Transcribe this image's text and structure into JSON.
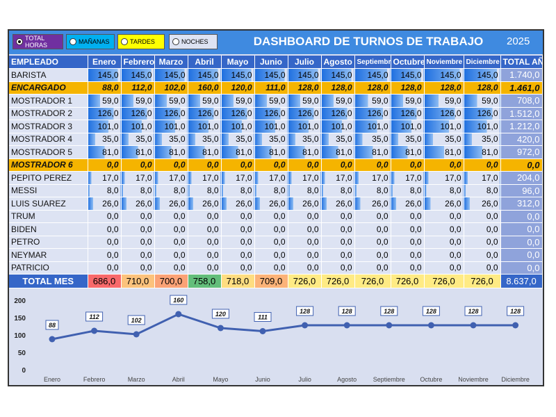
{
  "header": {
    "options": [
      {
        "label": "TOTAL HORAS",
        "selected": true,
        "color": "#7030a0"
      },
      {
        "label": "MAÑANAS",
        "selected": false,
        "color": "#00b0f0"
      },
      {
        "label": "TARDES",
        "selected": false,
        "color": "#ffff00"
      },
      {
        "label": "NOCHES",
        "selected": false,
        "color": "#dde3f3"
      }
    ],
    "title": "DASHBOARD DE TURNOS DE TRABAJO",
    "year": "2025"
  },
  "table": {
    "employee_header": "EMPLEADO",
    "months": [
      "Enero",
      "Febrero",
      "Marzo",
      "Abril",
      "Mayo",
      "Junio",
      "Julio",
      "Agosto",
      "Septiembre",
      "Octubre",
      "Noviembre",
      "Diciembre"
    ],
    "total_header": "TOTAL AÑO",
    "max_value": 160,
    "rows": [
      {
        "name": "BARISTA",
        "highlight": false,
        "values": [
          "145,0",
          "145,0",
          "145,0",
          "145,0",
          "145,0",
          "145,0",
          "145,0",
          "145,0",
          "145,0",
          "145,0",
          "145,0",
          "145,0"
        ],
        "nums": [
          145,
          145,
          145,
          145,
          145,
          145,
          145,
          145,
          145,
          145,
          145,
          145
        ],
        "total": "1.740,0"
      },
      {
        "name": "ENCARGADO",
        "highlight": true,
        "values": [
          "88,0",
          "112,0",
          "102,0",
          "160,0",
          "120,0",
          "111,0",
          "128,0",
          "128,0",
          "128,0",
          "128,0",
          "128,0",
          "128,0"
        ],
        "nums": [
          88,
          112,
          102,
          160,
          120,
          111,
          128,
          128,
          128,
          128,
          128,
          128
        ],
        "total": "1.461,0"
      },
      {
        "name": "MOSTRADOR 1",
        "highlight": false,
        "values": [
          "59,0",
          "59,0",
          "59,0",
          "59,0",
          "59,0",
          "59,0",
          "59,0",
          "59,0",
          "59,0",
          "59,0",
          "59,0",
          "59,0"
        ],
        "nums": [
          59,
          59,
          59,
          59,
          59,
          59,
          59,
          59,
          59,
          59,
          59,
          59
        ],
        "total": "708,0"
      },
      {
        "name": "MOSTRADOR 2",
        "highlight": false,
        "values": [
          "126,0",
          "126,0",
          "126,0",
          "126,0",
          "126,0",
          "126,0",
          "126,0",
          "126,0",
          "126,0",
          "126,0",
          "126,0",
          "126,0"
        ],
        "nums": [
          126,
          126,
          126,
          126,
          126,
          126,
          126,
          126,
          126,
          126,
          126,
          126
        ],
        "total": "1.512,0"
      },
      {
        "name": "MOSTRADOR 3",
        "highlight": false,
        "values": [
          "101,0",
          "101,0",
          "101,0",
          "101,0",
          "101,0",
          "101,0",
          "101,0",
          "101,0",
          "101,0",
          "101,0",
          "101,0",
          "101,0"
        ],
        "nums": [
          101,
          101,
          101,
          101,
          101,
          101,
          101,
          101,
          101,
          101,
          101,
          101
        ],
        "total": "1.212,0"
      },
      {
        "name": "MOSTRADOR 4",
        "highlight": false,
        "values": [
          "35,0",
          "35,0",
          "35,0",
          "35,0",
          "35,0",
          "35,0",
          "35,0",
          "35,0",
          "35,0",
          "35,0",
          "35,0",
          "35,0"
        ],
        "nums": [
          35,
          35,
          35,
          35,
          35,
          35,
          35,
          35,
          35,
          35,
          35,
          35
        ],
        "total": "420,0"
      },
      {
        "name": "MOSTRADOR 5",
        "highlight": false,
        "values": [
          "81,0",
          "81,0",
          "81,0",
          "81,0",
          "81,0",
          "81,0",
          "81,0",
          "81,0",
          "81,0",
          "81,0",
          "81,0",
          "81,0"
        ],
        "nums": [
          81,
          81,
          81,
          81,
          81,
          81,
          81,
          81,
          81,
          81,
          81,
          81
        ],
        "total": "972,0"
      },
      {
        "name": "MOSTRADOR 6",
        "highlight": true,
        "values": [
          "0,0",
          "0,0",
          "0,0",
          "0,0",
          "0,0",
          "0,0",
          "0,0",
          "0,0",
          "0,0",
          "0,0",
          "0,0",
          "0,0"
        ],
        "nums": [
          0,
          0,
          0,
          0,
          0,
          0,
          0,
          0,
          0,
          0,
          0,
          0
        ],
        "total": "0,0"
      },
      {
        "name": "PEPITO PEREZ",
        "highlight": false,
        "values": [
          "17,0",
          "17,0",
          "17,0",
          "17,0",
          "17,0",
          "17,0",
          "17,0",
          "17,0",
          "17,0",
          "17,0",
          "17,0",
          "17,0"
        ],
        "nums": [
          17,
          17,
          17,
          17,
          17,
          17,
          17,
          17,
          17,
          17,
          17,
          17
        ],
        "total": "204,0"
      },
      {
        "name": "MESSI",
        "highlight": false,
        "values": [
          "8,0",
          "8,0",
          "8,0",
          "8,0",
          "8,0",
          "8,0",
          "8,0",
          "8,0",
          "8,0",
          "8,0",
          "8,0",
          "8,0"
        ],
        "nums": [
          8,
          8,
          8,
          8,
          8,
          8,
          8,
          8,
          8,
          8,
          8,
          8
        ],
        "total": "96,0"
      },
      {
        "name": "LUIS SUAREZ",
        "highlight": false,
        "values": [
          "26,0",
          "26,0",
          "26,0",
          "26,0",
          "26,0",
          "26,0",
          "26,0",
          "26,0",
          "26,0",
          "26,0",
          "26,0",
          "26,0"
        ],
        "nums": [
          26,
          26,
          26,
          26,
          26,
          26,
          26,
          26,
          26,
          26,
          26,
          26
        ],
        "total": "312,0"
      },
      {
        "name": "TRUM",
        "highlight": false,
        "values": [
          "0,0",
          "0,0",
          "0,0",
          "0,0",
          "0,0",
          "0,0",
          "0,0",
          "0,0",
          "0,0",
          "0,0",
          "0,0",
          "0,0"
        ],
        "nums": [
          0,
          0,
          0,
          0,
          0,
          0,
          0,
          0,
          0,
          0,
          0,
          0
        ],
        "total": "0,0"
      },
      {
        "name": "BIDEN",
        "highlight": false,
        "values": [
          "0,0",
          "0,0",
          "0,0",
          "0,0",
          "0,0",
          "0,0",
          "0,0",
          "0,0",
          "0,0",
          "0,0",
          "0,0",
          "0,0"
        ],
        "nums": [
          0,
          0,
          0,
          0,
          0,
          0,
          0,
          0,
          0,
          0,
          0,
          0
        ],
        "total": "0,0"
      },
      {
        "name": "PETRO",
        "highlight": false,
        "values": [
          "0,0",
          "0,0",
          "0,0",
          "0,0",
          "0,0",
          "0,0",
          "0,0",
          "0,0",
          "0,0",
          "0,0",
          "0,0",
          "0,0"
        ],
        "nums": [
          0,
          0,
          0,
          0,
          0,
          0,
          0,
          0,
          0,
          0,
          0,
          0
        ],
        "total": "0,0"
      },
      {
        "name": "NEYMAR",
        "highlight": false,
        "values": [
          "0,0",
          "0,0",
          "0,0",
          "0,0",
          "0,0",
          "0,0",
          "0,0",
          "0,0",
          "0,0",
          "0,0",
          "0,0",
          "0,0"
        ],
        "nums": [
          0,
          0,
          0,
          0,
          0,
          0,
          0,
          0,
          0,
          0,
          0,
          0
        ],
        "total": "0,0"
      },
      {
        "name": "PATRICIO",
        "highlight": false,
        "values": [
          "0,0",
          "0,0",
          "0,0",
          "0,0",
          "0,0",
          "0,0",
          "0,0",
          "0,0",
          "0,0",
          "0,0",
          "0,0",
          "0,0"
        ],
        "nums": [
          0,
          0,
          0,
          0,
          0,
          0,
          0,
          0,
          0,
          0,
          0,
          0
        ],
        "total": "0,0"
      }
    ],
    "footer": {
      "label": "TOTAL MES",
      "values": [
        "686,0",
        "710,0",
        "700,0",
        "758,0",
        "718,0",
        "709,0",
        "726,0",
        "726,0",
        "726,0",
        "726,0",
        "726,0",
        "726,0"
      ],
      "colors": [
        "#f8696b",
        "#fcc27c",
        "#fba276",
        "#63be7b",
        "#fedd81",
        "#fcb379",
        "#ffeb84",
        "#ffeb84",
        "#ffeb84",
        "#ffeb84",
        "#ffeb84",
        "#ffeb84"
      ],
      "total": "8.637,0"
    }
  },
  "chart_data": {
    "type": "line",
    "categories": [
      "Enero",
      "Febrero",
      "Marzo",
      "Abril",
      "Mayo",
      "Junio",
      "Julio",
      "Agosto",
      "Septiembre",
      "Octubre",
      "Noviembre",
      "Diciembre"
    ],
    "series": [
      {
        "values": [
          88,
          112,
          102,
          160,
          120,
          111,
          128,
          128,
          128,
          128,
          128,
          128
        ]
      }
    ],
    "data_labels": [
      "88",
      "112",
      "102",
      "160",
      "120",
      "111",
      "128",
      "128",
      "128",
      "128",
      "128",
      "128"
    ],
    "yticks": [
      "200",
      "150",
      "100",
      "50",
      "0"
    ],
    "ylim": [
      0,
      200
    ],
    "grid": false,
    "line_color": "#4060b0"
  }
}
